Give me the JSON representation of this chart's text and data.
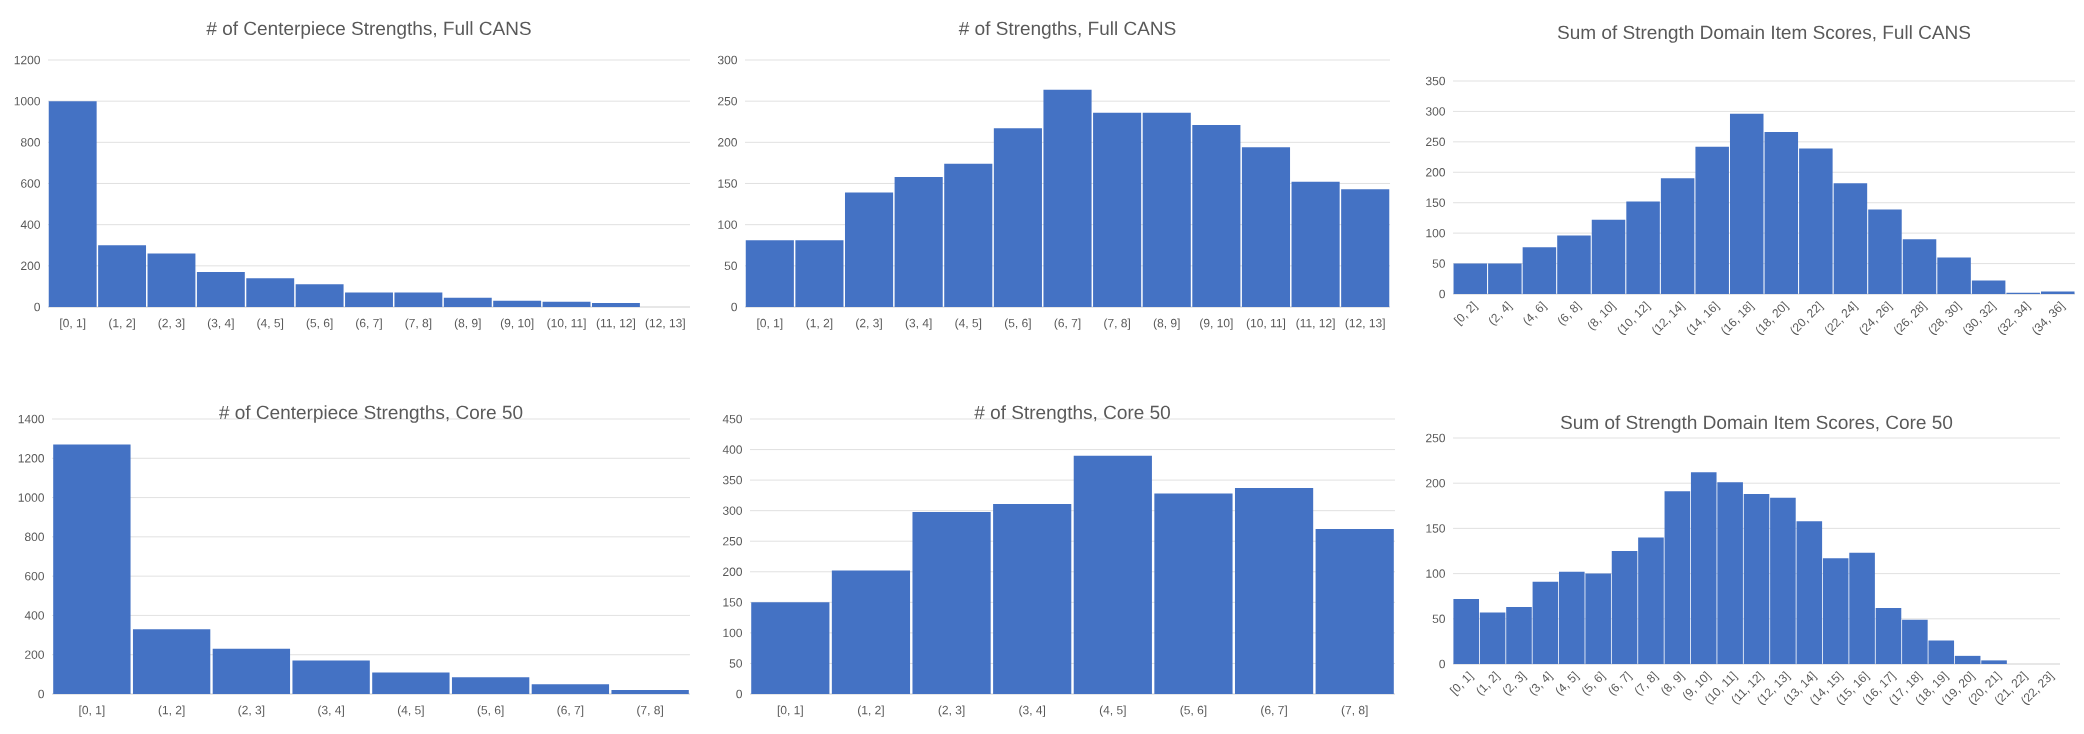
{
  "chart_data": [
    {
      "type": "bar",
      "title": "# of Centerpiece Strengths, Full CANS",
      "categories": [
        "[0, 1]",
        "(1, 2]",
        "(2, 3]",
        "(3, 4]",
        "(4, 5]",
        "(5, 6]",
        "(6, 7]",
        "(7, 8]",
        "(8, 9]",
        "(9, 10]",
        "(10, 11]",
        "(11, 12]",
        "(12, 13]"
      ],
      "values": [
        1000,
        300,
        260,
        170,
        140,
        110,
        70,
        70,
        45,
        30,
        25,
        20,
        0
      ],
      "color": "#4472c4",
      "ylim": [
        0,
        1200
      ],
      "yticks": [
        0,
        200,
        400,
        600,
        800,
        1000,
        1200
      ],
      "grid": "y"
    },
    {
      "type": "bar",
      "title": "# of Strengths, Full CANS",
      "categories": [
        "[0, 1]",
        "(1, 2]",
        "(2, 3]",
        "(3, 4]",
        "(4, 5]",
        "(5, 6]",
        "(6, 7]",
        "(7, 8]",
        "(8, 9]",
        "(9, 10]",
        "(10, 11]",
        "(11, 12]",
        "(12, 13]"
      ],
      "values": [
        81,
        81,
        139,
        158,
        174,
        217,
        264,
        236,
        236,
        221,
        194,
        152,
        143
      ],
      "color": "#4472c4",
      "ylim": [
        0,
        300
      ],
      "yticks": [
        0,
        50,
        100,
        150,
        200,
        250,
        300
      ],
      "grid": "y"
    },
    {
      "type": "bar",
      "title": "Sum of Strength Domain Item Scores, Full CANS",
      "categories": [
        "[0, 2]",
        "(2, 4]",
        "(4, 6]",
        "(6, 8]",
        "(8, 10]",
        "(10, 12]",
        "(12, 14]",
        "(14, 16]",
        "(16, 18]",
        "(18, 20]",
        "(20, 22]",
        "(22, 24]",
        "(24, 26]",
        "(26, 28]",
        "(28, 30]",
        "(30, 32]",
        "(32, 34]",
        "(34, 36]"
      ],
      "values": [
        50,
        50,
        77,
        96,
        122,
        152,
        190,
        242,
        296,
        266,
        239,
        182,
        139,
        90,
        60,
        22,
        2,
        4
      ],
      "color": "#4472c4",
      "ylim": [
        0,
        350
      ],
      "yticks": [
        0,
        50,
        100,
        150,
        200,
        250,
        300,
        350
      ],
      "grid": "y"
    },
    {
      "type": "bar",
      "title": "# of Centerpiece Strengths, Core 50",
      "categories": [
        "[0, 1]",
        "(1, 2]",
        "(2, 3]",
        "(3, 4]",
        "(4, 5]",
        "(5, 6]",
        "(6, 7]",
        "(7, 8]"
      ],
      "values": [
        1270,
        330,
        230,
        170,
        110,
        85,
        50,
        20
      ],
      "color": "#4472c4",
      "ylim": [
        0,
        1400
      ],
      "yticks": [
        0,
        200,
        400,
        600,
        800,
        1000,
        1200,
        1400
      ],
      "grid": "y"
    },
    {
      "type": "bar",
      "title": "# of Strengths, Core 50",
      "categories": [
        "[0, 1]",
        "(1, 2]",
        "(2, 3]",
        "(3, 4]",
        "(4, 5]",
        "(5, 6]",
        "(6, 7]",
        "(7, 8]"
      ],
      "values": [
        150,
        202,
        298,
        311,
        390,
        328,
        337,
        270
      ],
      "color": "#4472c4",
      "ylim": [
        0,
        450
      ],
      "yticks": [
        0,
        50,
        100,
        150,
        200,
        250,
        300,
        350,
        400,
        450
      ],
      "grid": "y"
    },
    {
      "type": "bar",
      "title": "Sum of Strength Domain Item Scores, Core 50",
      "categories": [
        "[0, 1]",
        "(1, 2]",
        "(2, 3]",
        "(3, 4]",
        "(4, 5]",
        "(5, 6]",
        "(6, 7]",
        "(7, 8]",
        "(8, 9]",
        "(9, 10]",
        "(10, 11]",
        "(11, 12]",
        "(12, 13]",
        "(13, 14]",
        "(14, 15]",
        "(15, 16]",
        "(16, 17]",
        "(17, 18]",
        "(18, 19]",
        "(19, 20]",
        "(20, 21]",
        "(21, 22]",
        "(22, 23]"
      ],
      "values": [
        72,
        57,
        63,
        91,
        102,
        100,
        125,
        140,
        191,
        212,
        201,
        188,
        184,
        158,
        117,
        123,
        62,
        49,
        26,
        9,
        4,
        0,
        0
      ],
      "color": "#4472c4",
      "ylim": [
        0,
        250
      ],
      "yticks": [
        0,
        50,
        100,
        150,
        200,
        250
      ],
      "grid": "y"
    }
  ]
}
